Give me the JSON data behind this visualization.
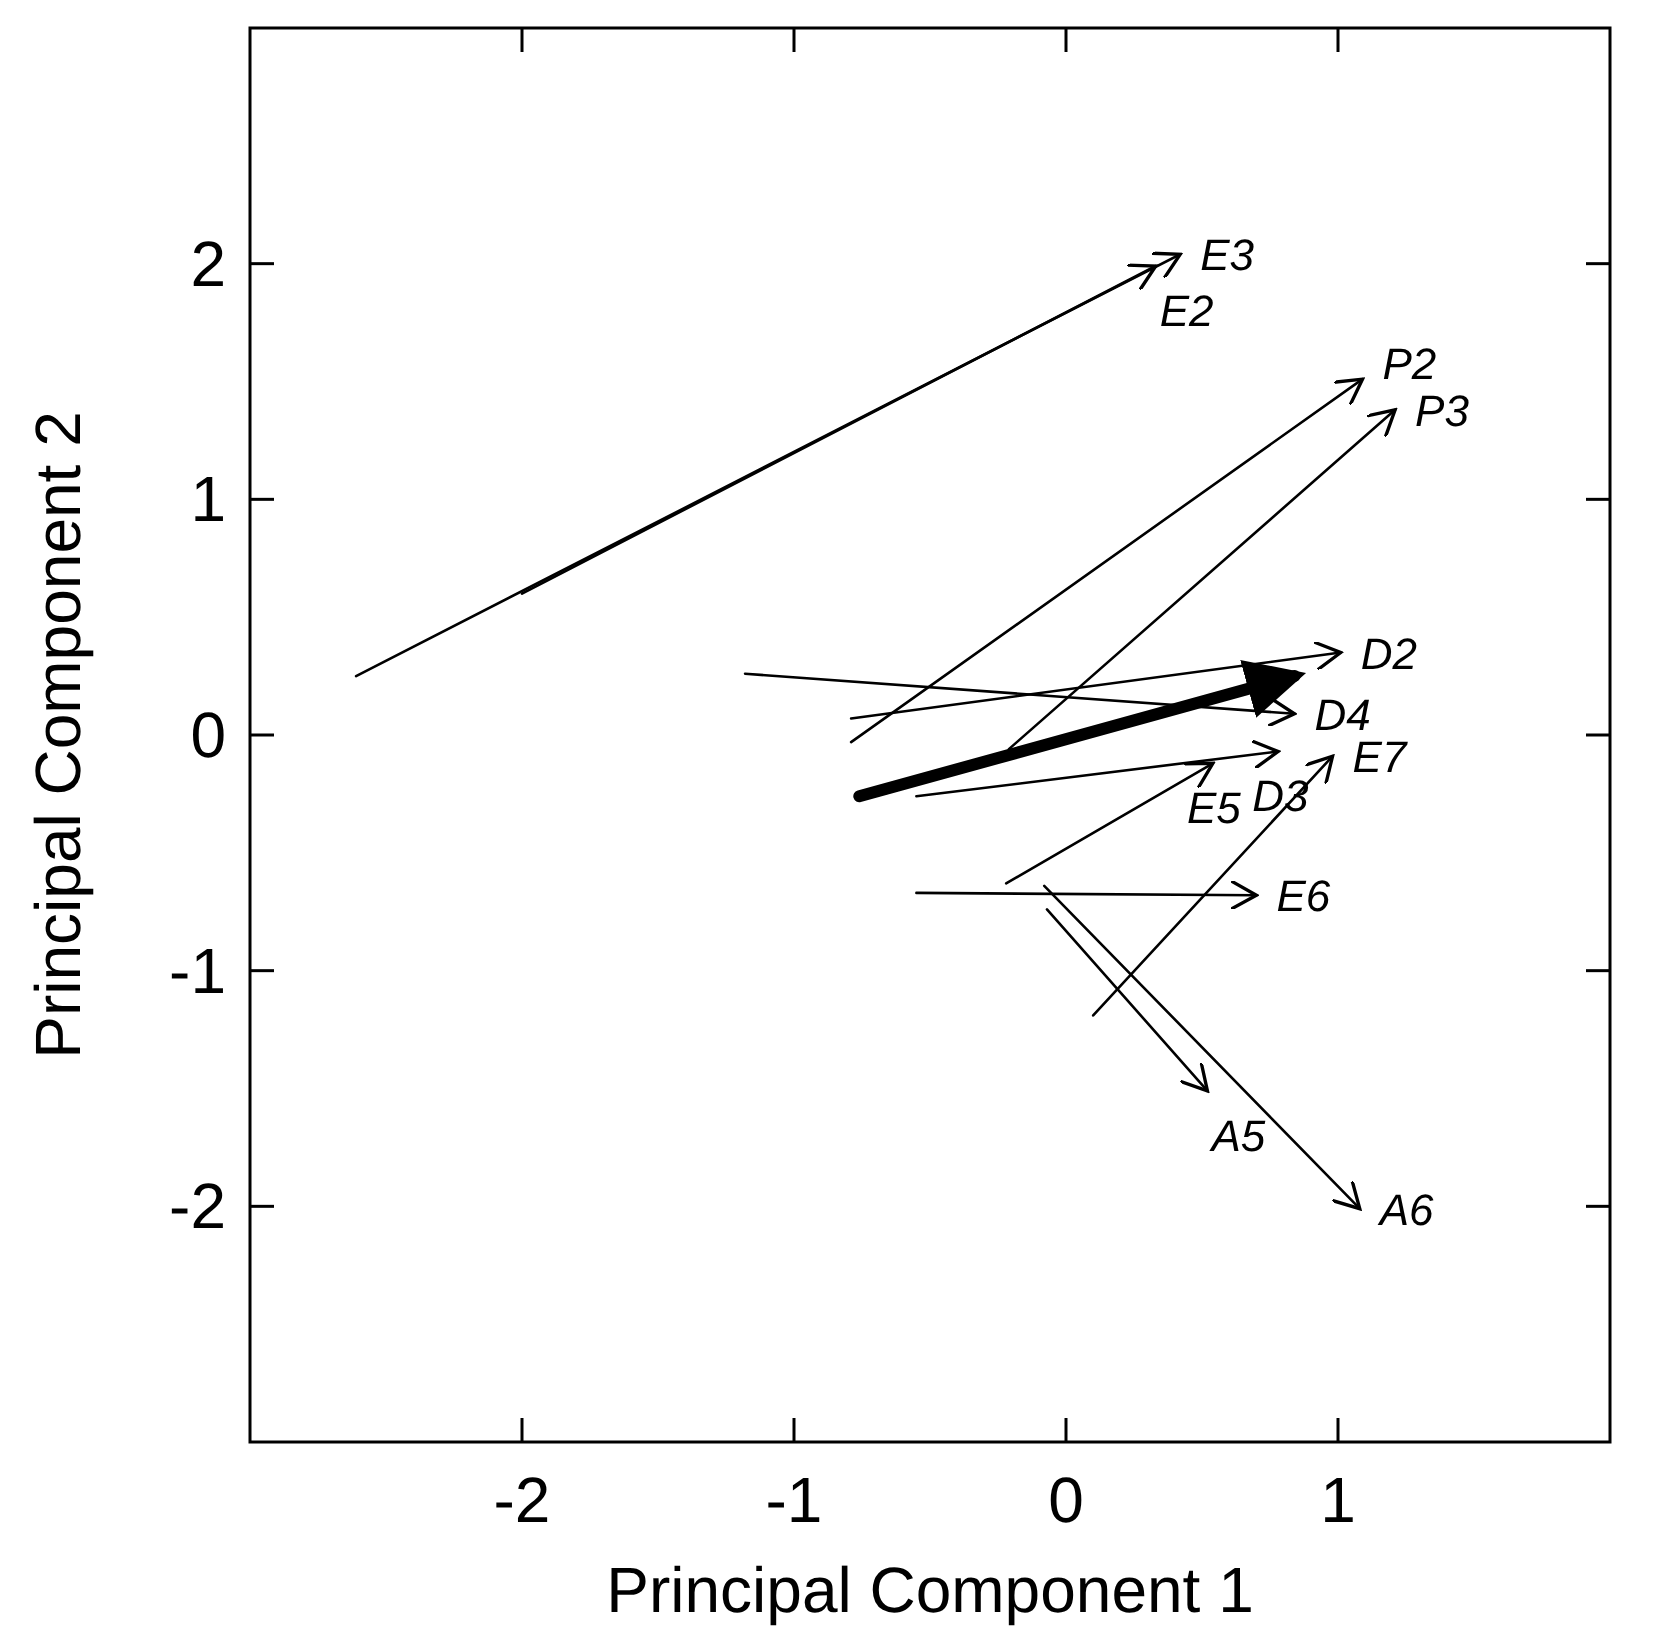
{
  "chart_data": {
    "type": "line",
    "xlabel": "Principal Component 1",
    "ylabel": "Principal Component 2",
    "xlim": [
      -3,
      2
    ],
    "ylim": [
      -3,
      3
    ],
    "xticks": [
      -2,
      -1,
      0,
      1
    ],
    "yticks": [
      -2,
      -1,
      0,
      1,
      2
    ],
    "grid": false,
    "legend": false,
    "marker": "none",
    "line_style": "solid",
    "series": [
      {
        "name": "E3",
        "color": "#000000",
        "x": [
          -2.61,
          0.42
        ],
        "values": [
          0.25,
          2.04
        ]
      },
      {
        "name": "E2",
        "color": "#000000",
        "x": [
          -2.0,
          0.33
        ],
        "values": [
          0.6,
          1.99
        ]
      },
      {
        "name": "P2",
        "color": "#000000",
        "x": [
          -0.79,
          1.09
        ],
        "values": [
          -0.03,
          1.51
        ]
      },
      {
        "name": "P3",
        "color": "#000000",
        "x": [
          -0.21,
          1.21
        ],
        "values": [
          -0.06,
          1.38
        ]
      },
      {
        "name": "D2",
        "color": "#000000",
        "x": [
          -0.79,
          1.01
        ],
        "values": [
          0.07,
          0.35
        ]
      },
      {
        "name": "D4",
        "color": "#000000",
        "x": [
          -1.18,
          0.84
        ],
        "values": [
          0.26,
          0.09
        ]
      },
      {
        "name": "D3",
        "color": "#000000",
        "x": [
          -0.55,
          0.78
        ],
        "values": [
          -0.26,
          -0.07
        ]
      },
      {
        "name": "E7",
        "color": "#000000",
        "x": [
          0.1,
          0.98
        ],
        "values": [
          -1.19,
          -0.09
        ]
      },
      {
        "name": "E5",
        "color": "#000000",
        "x": [
          -0.22,
          0.54
        ],
        "values": [
          -0.63,
          -0.12
        ]
      },
      {
        "name": "E6",
        "color": "#000000",
        "x": [
          -0.55,
          0.7
        ],
        "values": [
          -0.67,
          -0.68
        ]
      },
      {
        "name": "A5",
        "color": "#000000",
        "x": [
          -0.07,
          0.52
        ],
        "values": [
          -0.74,
          -1.51
        ]
      },
      {
        "name": "A6",
        "color": "#000000",
        "x": [
          -0.08,
          1.08
        ],
        "values": [
          -0.64,
          -2.01
        ]
      },
      {
        "color": "#000000",
        "x": [
          -0.76,
          0.84
        ],
        "values": [
          -0.26,
          0.25
        ]
      }
    ]
  }
}
